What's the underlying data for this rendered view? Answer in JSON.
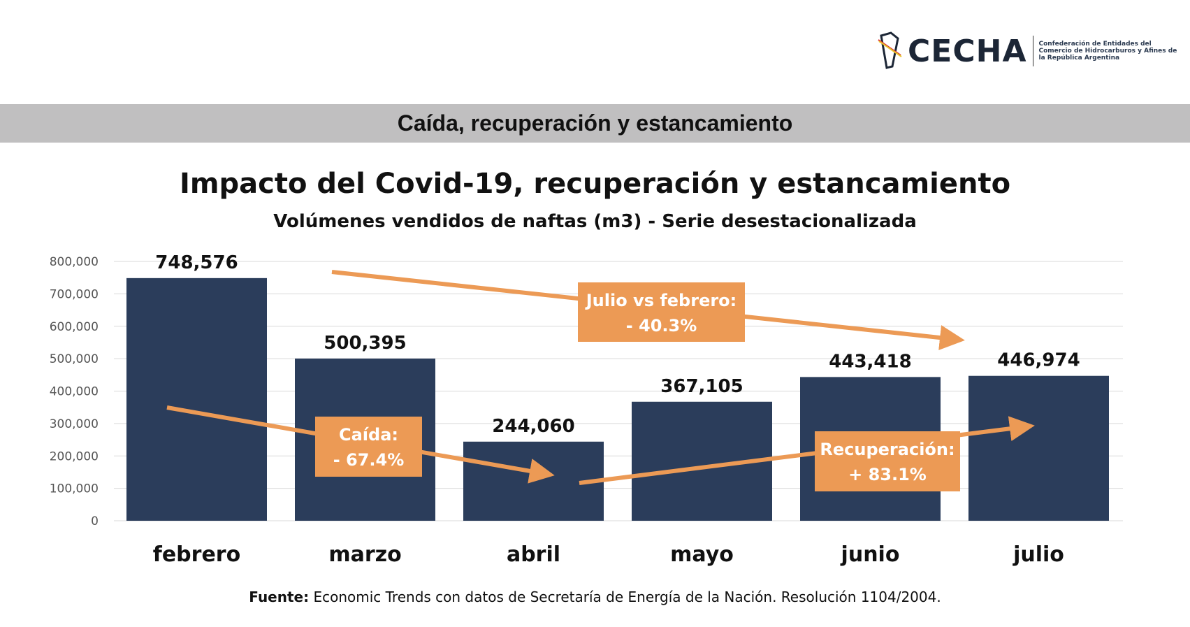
{
  "logo": {
    "name": "CECHA",
    "description": "Confederación de Entidades del Comercio de Hidrocarburos y Afines de la República Argentina"
  },
  "band_title": "Caída, recuperación y estancamiento",
  "source": {
    "label": "Fuente:",
    "text": " Economic Trends con datos de Secretaría de Energía de la Nación. Resolución 1104/2004."
  },
  "colors": {
    "bar": "#2b3d5b",
    "accent": "#ec9a55",
    "band": "#c0bfc0"
  },
  "chart_data": {
    "type": "bar",
    "title": "Impacto del Covid-19, recuperación y estancamiento",
    "subtitle": "Volúmenes vendidos de naftas (m3) - Serie desestacionalizada",
    "categories": [
      "febrero",
      "marzo",
      "abril",
      "mayo",
      "junio",
      "julio"
    ],
    "values": [
      748576,
      500395,
      244060,
      367105,
      443418,
      446974
    ],
    "data_labels": [
      "748,576",
      "500,395",
      "244,060",
      "367,105",
      "443,418",
      "446,974"
    ],
    "ylim": [
      0,
      800000
    ],
    "yticks": [
      0,
      100000,
      200000,
      300000,
      400000,
      500000,
      600000,
      700000,
      800000
    ],
    "ytick_labels": [
      "0",
      "100,000",
      "200,000",
      "300,000",
      "400,000",
      "500,000",
      "600,000",
      "700,000",
      "800,000"
    ],
    "grid": true,
    "annotations": [
      {
        "line1": "Julio vs febrero:",
        "line2": "- 40.3%",
        "from": "febrero",
        "to": "julio"
      },
      {
        "line1": "Caída:",
        "line2": "- 67.4%",
        "from": "febrero",
        "to": "abril"
      },
      {
        "line1": "Recuperación:",
        "line2": "+ 83.1%",
        "from": "abril",
        "to": "julio"
      }
    ]
  }
}
